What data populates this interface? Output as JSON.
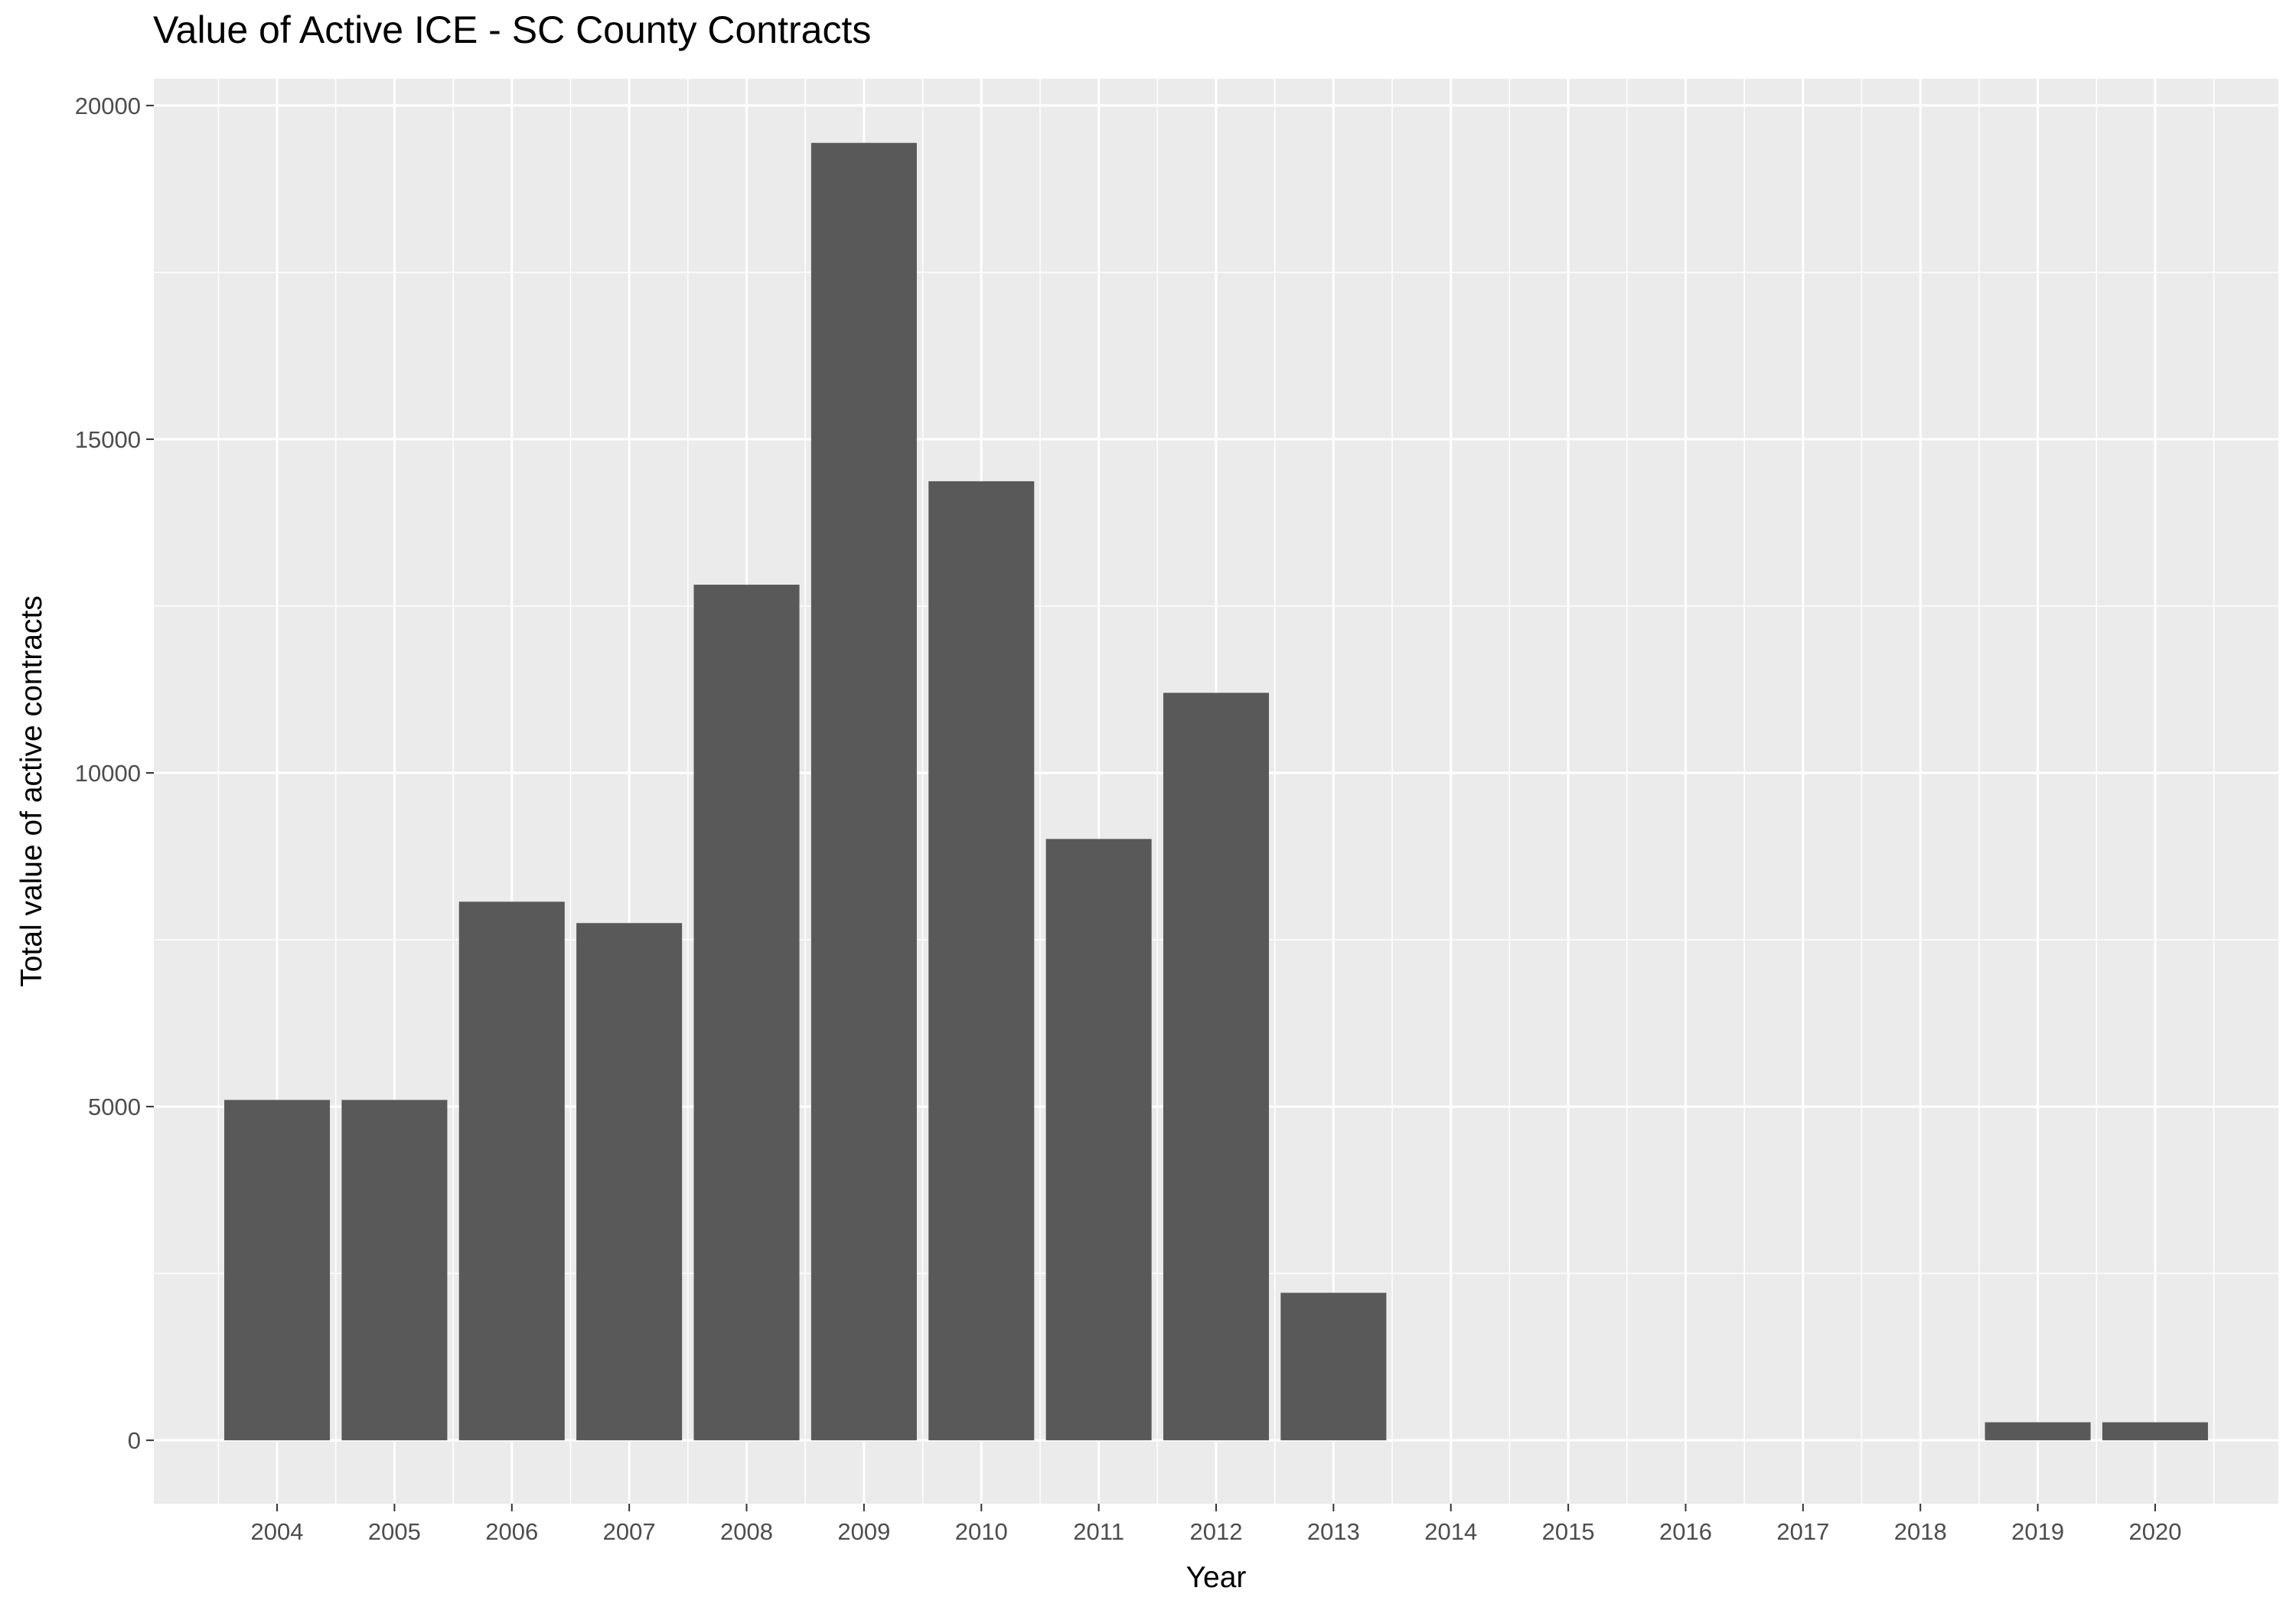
{
  "chart_data": {
    "type": "bar",
    "title": "Value of Active ICE - SC County Contracts",
    "xlabel": "Year",
    "ylabel": "Total value of active contracts",
    "categories": [
      "2004",
      "2005",
      "2006",
      "2007",
      "2008",
      "2009",
      "2010",
      "2011",
      "2012",
      "2013",
      "2014",
      "2015",
      "2016",
      "2017",
      "2018",
      "2019",
      "2020"
    ],
    "values": [
      5100,
      5100,
      8070,
      7750,
      12820,
      19440,
      14370,
      9010,
      11200,
      2210,
      0,
      0,
      0,
      0,
      0,
      270,
      270
    ],
    "ylim": [
      -950,
      20400
    ],
    "y_ticks": [
      0,
      5000,
      10000,
      15000,
      20000
    ],
    "y_tick_labels": [
      "0",
      "5000",
      "10000",
      "15000",
      "20000"
    ],
    "grid": true,
    "legend": "none",
    "colors": {
      "panel": "#ebebeb",
      "grid": "#ffffff",
      "bar": "#595959",
      "tick_text": "#4d4d4d",
      "tick_mark": "#333333"
    }
  }
}
